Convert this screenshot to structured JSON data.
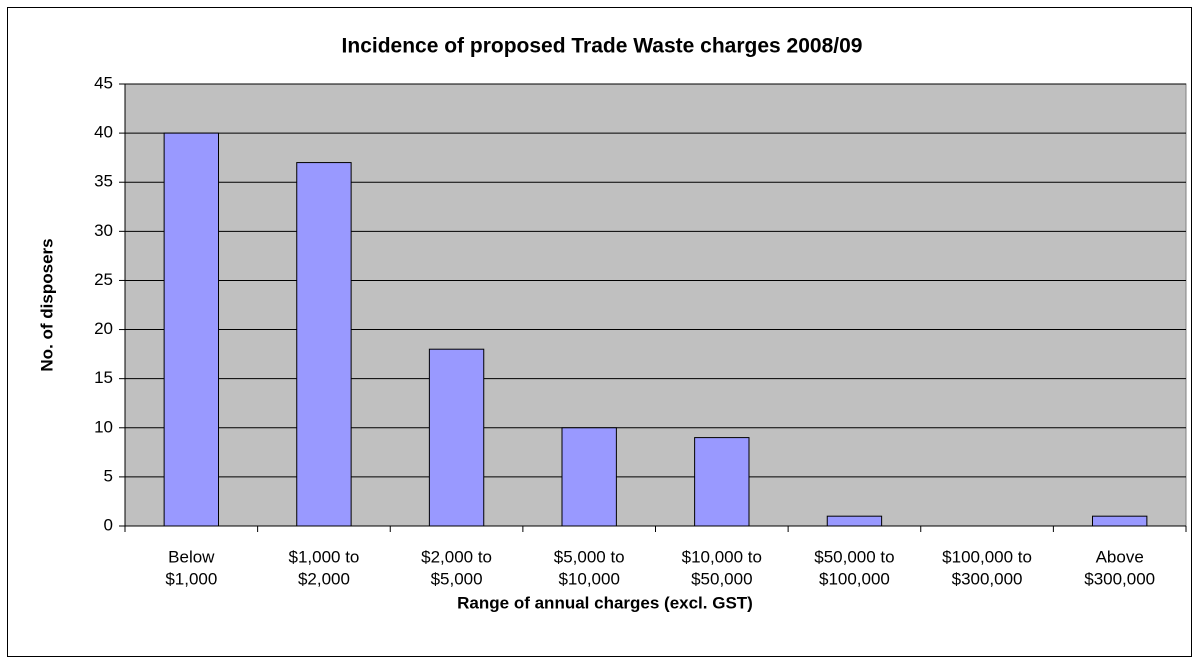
{
  "chart_data": {
    "type": "bar",
    "title": "Incidence of proposed Trade Waste charges 2008/09",
    "x_label": "Range of annual charges (excl. GST)",
    "y_label": "No. of disposers",
    "categories": [
      [
        "Below",
        "$1,000"
      ],
      [
        "$1,000 to",
        "$2,000"
      ],
      [
        "$2,000 to",
        "$5,000"
      ],
      [
        "$5,000 to",
        "$10,000"
      ],
      [
        "$10,000 to",
        "$50,000"
      ],
      [
        "$50,000 to",
        "$100,000"
      ],
      [
        "$100,000 to",
        "$300,000"
      ],
      [
        "Above",
        "$300,000"
      ]
    ],
    "values": [
      40,
      37,
      18,
      10,
      9,
      1,
      0,
      1
    ],
    "color": "#9999ff",
    "plot_background": "#c0c0c0",
    "ylim": [
      0,
      45
    ],
    "yticks": [
      0,
      5,
      10,
      15,
      20,
      25,
      30,
      35,
      40,
      45
    ],
    "grid": true
  }
}
